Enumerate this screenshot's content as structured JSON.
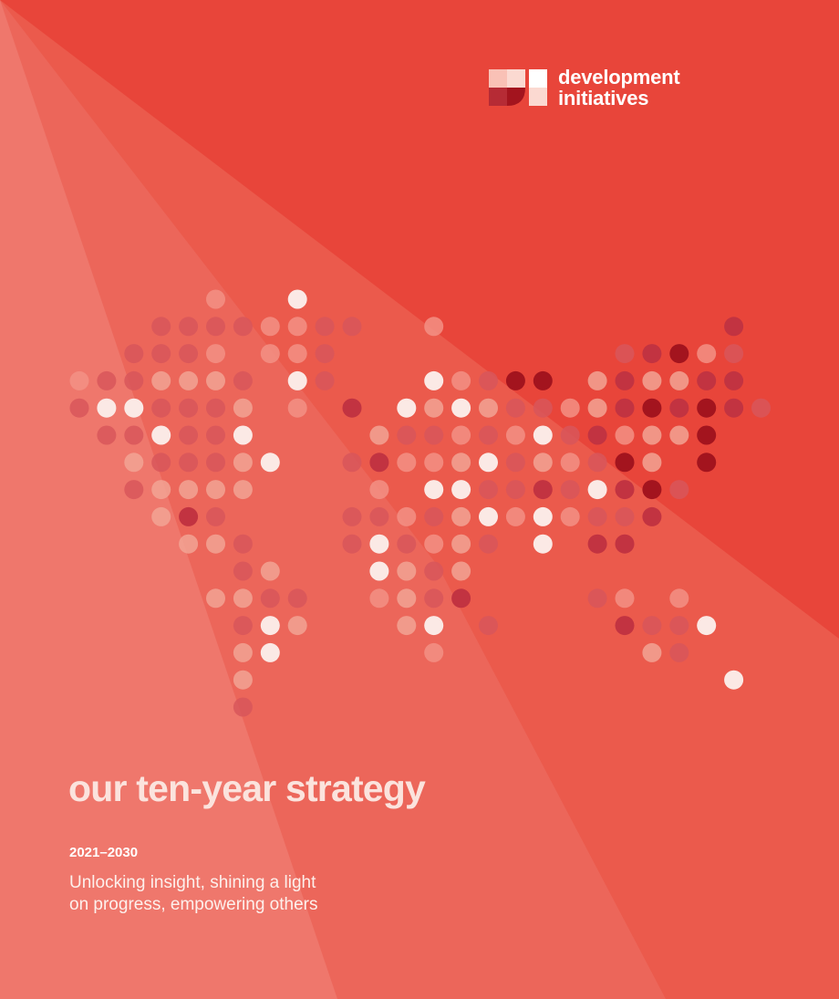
{
  "brand": {
    "logo_line1": "development",
    "logo_line2": "initiatives",
    "colors": {
      "base": "#e8453a",
      "light": "#ffffff",
      "dark": "#a3141e"
    }
  },
  "cover": {
    "title": "our ten-year strategy",
    "years": "2021–2030",
    "tagline_line1": "Unlocking insight, shining a light",
    "tagline_line2": "on progress, empowering others"
  }
}
